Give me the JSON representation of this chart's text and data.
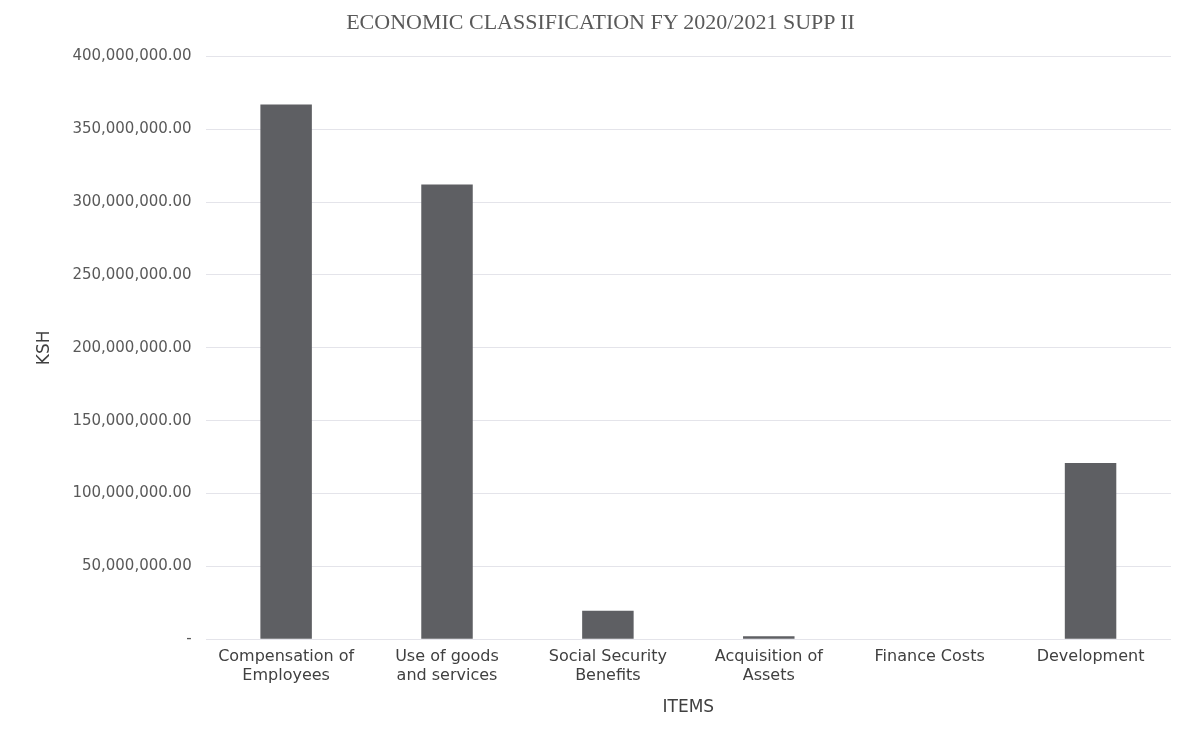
{
  "chart_data": {
    "type": "bar",
    "title": "ECONOMIC CLASSIFICATION FY 2020/2021 SUPP II",
    "xlabel": "ITEMS",
    "ylabel": "KSH",
    "categories": [
      "Compensation of Employees",
      "Use of goods and services",
      "Social Security Benefits",
      "Acquisition of Assets",
      "Finance Costs",
      "Development"
    ],
    "values": [
      367000000,
      312000000,
      19500000,
      2000000,
      0,
      121000000
    ],
    "color": "#5e5f63",
    "ylim": [
      0,
      400000000
    ],
    "yticks": [
      {
        "value": 0,
        "label": "-"
      },
      {
        "value": 50000000,
        "label": "50,000,000.00"
      },
      {
        "value": 100000000,
        "label": "100,000,000.00"
      },
      {
        "value": 150000000,
        "label": "150,000,000.00"
      },
      {
        "value": 200000000,
        "label": "200,000,000.00"
      },
      {
        "value": 250000000,
        "label": "250,000,000.00"
      },
      {
        "value": 300000000,
        "label": "300,000,000.00"
      },
      {
        "value": 350000000,
        "label": "350,000,000.00"
      },
      {
        "value": 400000000,
        "label": "400,000,000.00"
      }
    ],
    "grid": "y"
  }
}
